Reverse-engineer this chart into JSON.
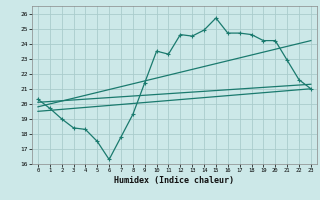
{
  "xlabel": "Humidex (Indice chaleur)",
  "background_color": "#cce8e8",
  "grid_color": "#aacccc",
  "line_color": "#1a7a6e",
  "xlim": [
    -0.5,
    23.5
  ],
  "ylim": [
    16,
    26.5
  ],
  "xticks": [
    0,
    1,
    2,
    3,
    4,
    5,
    6,
    7,
    8,
    9,
    10,
    11,
    12,
    13,
    14,
    15,
    16,
    17,
    18,
    19,
    20,
    21,
    22,
    23
  ],
  "yticks": [
    16,
    17,
    18,
    19,
    20,
    21,
    22,
    23,
    24,
    25,
    26
  ],
  "series1_x": [
    0,
    1,
    2,
    3,
    4,
    5,
    6,
    7,
    8,
    9,
    10,
    11,
    12,
    13,
    14,
    15,
    16,
    17,
    18,
    19,
    20,
    21,
    22,
    23
  ],
  "series1_y": [
    20.3,
    19.7,
    19.0,
    18.4,
    18.3,
    17.5,
    16.3,
    17.8,
    19.3,
    21.4,
    23.5,
    23.3,
    24.6,
    24.5,
    24.9,
    25.7,
    24.7,
    24.7,
    24.6,
    24.2,
    24.2,
    22.9,
    21.6,
    21.0
  ],
  "series2_x": [
    0,
    23
  ],
  "series2_y": [
    19.8,
    24.2
  ],
  "series3_x": [
    0,
    23
  ],
  "series3_y": [
    19.5,
    21.0
  ],
  "series4_x": [
    0,
    23
  ],
  "series4_y": [
    20.1,
    21.3
  ]
}
